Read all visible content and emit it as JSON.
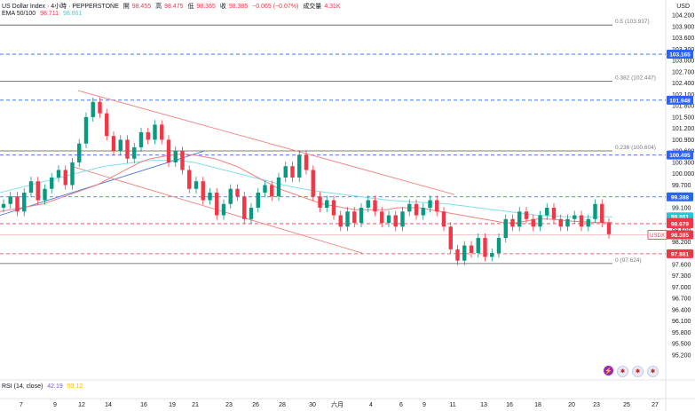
{
  "header": {
    "symbol": "US Dollar Index · 4小時 · PEPPERSTONE",
    "open_label": "開",
    "open": "98.455",
    "high_label": "高",
    "high": "98.475",
    "low_label": "低",
    "low": "98.365",
    "close_label": "收",
    "close": "98.385",
    "change": "−0.065 (−0.07%)",
    "volume_label": "成交量",
    "volume": "4.31K"
  },
  "ema": {
    "label": "EMA 50/100",
    "ema50": "98.711",
    "ema100": "98.861"
  },
  "rsi": {
    "label": "RSI (14, close)",
    "value1": "42.19",
    "value2": "53.12"
  },
  "axis": {
    "unit": "USD"
  },
  "colors": {
    "up": "#089981",
    "down": "#f23645",
    "ema50": "#f08080",
    "ema100": "#80deea",
    "trend": "#4a7bd9",
    "channel": "#f08080"
  },
  "chart_data": {
    "type": "candlestick",
    "ylim": [
      95.2,
      104.2
    ],
    "x_ticks": [
      "7",
      "9",
      "12",
      "14",
      "16",
      "19",
      "21",
      "23",
      "26",
      "28",
      "30",
      "六月",
      "4",
      "6",
      "9",
      "11",
      "13",
      "16",
      "18",
      "20",
      "23",
      "25",
      "27"
    ],
    "y_ticks": [
      "104.200",
      "103.900",
      "103.600",
      "103.300",
      "103.000",
      "102.700",
      "102.400",
      "102.100",
      "101.800",
      "101.500",
      "101.200",
      "100.900",
      "100.600",
      "100.300",
      "100.000",
      "99.700",
      "99.400",
      "99.100",
      "98.800",
      "98.500",
      "98.200",
      "97.900",
      "97.600",
      "97.300",
      "97.000",
      "96.700",
      "96.400",
      "96.100",
      "95.800",
      "95.500",
      "95.200"
    ],
    "fib_levels": [
      {
        "label": "0.5 (103.937)",
        "value": 103.937
      },
      {
        "label": "0.382 (102.447)",
        "value": 102.447
      },
      {
        "label": "0.236 (100.604)",
        "value": 100.604
      },
      {
        "label": "0 (97.624)",
        "value": 97.624
      }
    ],
    "dashed_levels": [
      {
        "label": "103.165",
        "value": 103.165
      },
      {
        "label": "101.948",
        "value": 101.948
      },
      {
        "label": "100.495",
        "value": 100.495
      },
      {
        "label": "99.388",
        "value": 99.388
      },
      {
        "label": "98.679",
        "value": 98.679
      },
      {
        "label": "97.881",
        "value": 97.881
      }
    ],
    "price_tags": [
      {
        "label": "99.388",
        "value": 99.388,
        "color": "#2962ff"
      },
      {
        "label": "98.861",
        "value": 98.861,
        "color": "#26c6da"
      },
      {
        "label": "98.711",
        "value": 98.711,
        "color": "#f23645"
      },
      {
        "label": "98.679",
        "value": 98.679,
        "color": "#f23645"
      },
      {
        "label": "98.385",
        "value": 98.385,
        "color": "#f23645",
        "prefix": "USDX"
      },
      {
        "label": "97.881",
        "value": 97.881,
        "color": "#f23645"
      }
    ],
    "candles_close": [
      99.2,
      99.4,
      99.0,
      99.5,
      99.8,
      99.3,
      99.6,
      99.9,
      100.1,
      99.7,
      100.3,
      100.8,
      101.5,
      101.9,
      101.6,
      101.0,
      100.6,
      100.9,
      100.4,
      100.7,
      101.1,
      100.9,
      101.3,
      100.9,
      100.3,
      100.6,
      100.1,
      99.6,
      99.8,
      99.3,
      99.5,
      98.9,
      99.2,
      99.6,
      99.4,
      98.8,
      99.1,
      99.5,
      99.7,
      99.4,
      99.9,
      100.2,
      99.9,
      100.5,
      100.1,
      99.4,
      99.1,
      99.3,
      98.9,
      98.6,
      99.0,
      98.7,
      99.1,
      99.3,
      99.0,
      98.7,
      98.9,
      98.6,
      99.0,
      99.2,
      98.9,
      99.1,
      99.3,
      99.0,
      98.6,
      98.0,
      97.7,
      98.1,
      97.9,
      98.3,
      97.8,
      97.9,
      98.3,
      98.8,
      98.6,
      99.0,
      98.8,
      98.6,
      98.9,
      99.1,
      98.8,
      98.6,
      98.8,
      98.9,
      98.6,
      98.8,
      99.2,
      98.7,
      98.4
    ],
    "ema50": [
      99.0,
      99.05,
      99.1,
      99.15,
      99.2,
      99.3,
      99.4,
      99.5,
      99.6,
      99.7,
      99.85,
      100.0,
      100.15,
      100.3,
      100.4,
      100.45,
      100.5,
      100.52,
      100.5,
      100.45,
      100.4,
      100.3,
      100.2,
      100.05,
      99.9,
      99.75,
      99.6,
      99.5,
      99.4,
      99.3,
      99.2,
      99.15,
      99.1,
      99.05,
      99.05,
      99.05,
      99.05,
      99.1,
      99.1,
      99.1,
      99.05,
      99.0,
      98.95,
      98.9,
      98.85,
      98.8,
      98.75,
      98.7,
      98.7,
      98.75,
      98.8,
      98.8,
      98.78,
      98.75,
      98.73,
      98.72,
      98.71,
      98.71
    ],
    "ema100": [
      99.5,
      99.6,
      99.7,
      99.8,
      99.9,
      100.0,
      100.1,
      100.2,
      100.25,
      100.3,
      100.35,
      100.35,
      100.35,
      100.3,
      100.2,
      100.1,
      100.0,
      99.9,
      99.8,
      99.7,
      99.62,
      99.55,
      99.5,
      99.45,
      99.4,
      99.35,
      99.3,
      99.27,
      99.25,
      99.22,
      99.2,
      99.15,
      99.1,
      99.05,
      99.0,
      98.95,
      98.9,
      98.88,
      98.86,
      98.86,
      98.86,
      98.86
    ],
    "trendline": [
      [
        0,
        98.9
      ],
      [
        230,
        100.6
      ]
    ],
    "channel_upper": [
      [
        88,
        102.2
      ],
      [
        512,
        99.45
      ]
    ],
    "channel_lower": [
      [
        80,
        100.2
      ],
      [
        408,
        97.9
      ]
    ]
  }
}
